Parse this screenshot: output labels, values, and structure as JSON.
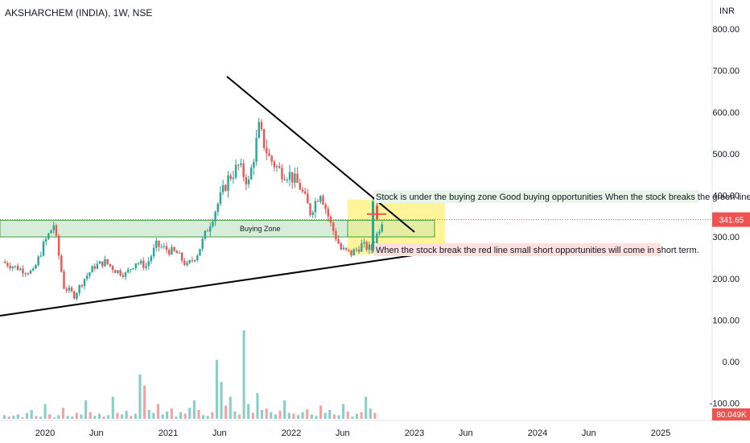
{
  "header": {
    "title": "AKSHARCHEM (INDIA), 1W, NSE",
    "currency": "INR"
  },
  "colors": {
    "up": "#26a69a",
    "down": "#ef5350",
    "trendline": "#000000",
    "zone_fill": "#c8e6c9",
    "zone_stroke": "#43a047",
    "highlight_fill": "#fff176",
    "badge_price": "#ef5350",
    "badge_volume": "#ef5350",
    "annotation_green_bg": "#e8f5e9",
    "annotation_red_bg": "#fde0e0"
  },
  "chart_data": {
    "type": "candlestick",
    "title": "AKSHARCHEM (INDIA), 1W, NSE",
    "ylabel": "INR",
    "ylim": [
      -120,
      800
    ],
    "y_ticks": [
      "800.00",
      "700.00",
      "600.00",
      "500.00",
      "400.00",
      "300.00",
      "200.00",
      "100.00",
      "0.00",
      "-100.00"
    ],
    "x_ticks": [
      "2020",
      "Jun",
      "2021",
      "Jun",
      "2022",
      "Jun",
      "2023",
      "Jun",
      "2024",
      "Jun",
      "2025"
    ],
    "price_badge": "341.65",
    "volume_badge": "80.049K",
    "zone": {
      "label": "Buying Zone",
      "low": 300,
      "high": 340
    },
    "annotations": [
      {
        "text": "Stock is under the buying zone Good buying opportunities When the stock breaks the green line",
        "style": "green"
      },
      {
        "text": "When the stock break the red line small short opportunities will come in short term.",
        "style": "red"
      }
    ],
    "trendlines": [
      {
        "name": "descending",
        "from": [
          "2021-07",
          700
        ],
        "to": [
          "2022-12",
          310
        ]
      },
      {
        "name": "ascending",
        "from": [
          "2019-09",
          110
        ],
        "to": [
          "2022-11",
          255
        ]
      }
    ],
    "price_path": [
      [
        "2019-09",
        240
      ],
      [
        "2019-10",
        230
      ],
      [
        "2019-11",
        220
      ],
      [
        "2019-12",
        215
      ],
      [
        "2020-01",
        280
      ],
      [
        "2020-02",
        330
      ],
      [
        "2020-03",
        180
      ],
      [
        "2020-04",
        160
      ],
      [
        "2020-05",
        200
      ],
      [
        "2020-06",
        230
      ],
      [
        "2020-07",
        240
      ],
      [
        "2020-08",
        220
      ],
      [
        "2020-09",
        210
      ],
      [
        "2020-10",
        240
      ],
      [
        "2020-11",
        230
      ],
      [
        "2020-12",
        280
      ],
      [
        "2021-01",
        270
      ],
      [
        "2021-02",
        260
      ],
      [
        "2021-03",
        230
      ],
      [
        "2021-04",
        260
      ],
      [
        "2021-05",
        320
      ],
      [
        "2021-06",
        380
      ],
      [
        "2021-07",
        440
      ],
      [
        "2021-08",
        470
      ],
      [
        "2021-09",
        430
      ],
      [
        "2021-10",
        560
      ],
      [
        "2021-11",
        490
      ],
      [
        "2021-12",
        460
      ],
      [
        "2022-01",
        450
      ],
      [
        "2022-02",
        420
      ],
      [
        "2022-03",
        360
      ],
      [
        "2022-04",
        410
      ],
      [
        "2022-05",
        330
      ],
      [
        "2022-06",
        270
      ],
      [
        "2022-07",
        260
      ],
      [
        "2022-08",
        280
      ],
      [
        "2022-09",
        270
      ],
      [
        "2022-10",
        341.65
      ]
    ],
    "volume_bars_k": [
      5,
      3,
      4,
      6,
      2,
      8,
      12,
      4,
      3,
      20,
      6,
      2,
      5,
      15,
      4,
      3,
      8,
      6,
      25,
      9,
      4,
      7,
      3,
      5,
      30,
      8,
      6,
      11,
      4,
      7,
      60,
      45,
      12,
      8,
      20,
      6,
      10,
      14,
      3,
      9,
      7,
      15,
      25,
      12,
      5,
      4,
      9,
      80,
      50,
      18,
      30,
      10,
      6,
      120,
      20,
      8,
      35,
      12,
      14,
      9,
      6,
      11,
      25,
      8,
      7,
      5,
      9,
      13,
      6,
      4,
      18,
      8,
      12,
      6,
      5,
      20,
      10,
      3,
      7,
      9,
      30,
      14,
      8
    ]
  }
}
